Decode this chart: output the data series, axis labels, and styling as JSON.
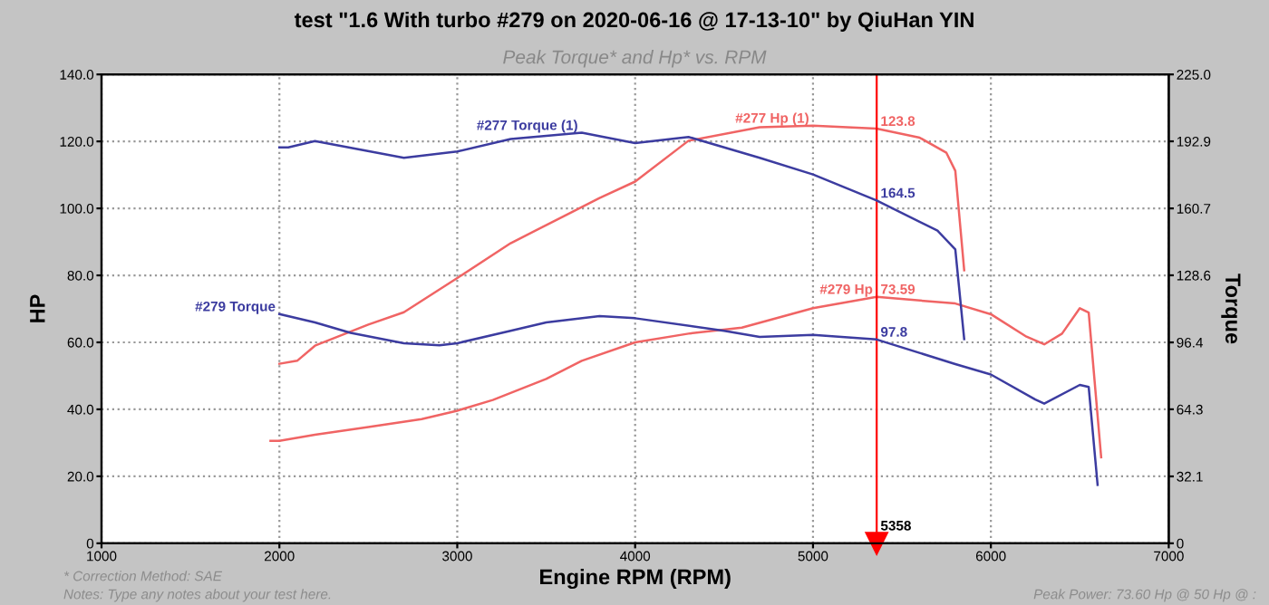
{
  "chart_data": {
    "type": "line",
    "title": "test \"1.6 With turbo #279 on 2020-06-16 @ 17-13-10\" by QiuHan YIN",
    "subtitle": "Peak Torque* and Hp* vs. RPM",
    "xlabel": "Engine RPM (RPM)",
    "ylabel": "HP",
    "y2label": "Torque",
    "xlim": [
      1000,
      7000
    ],
    "xticks": [
      1000,
      2000,
      3000,
      4000,
      5000,
      6000,
      7000
    ],
    "ylim": [
      0,
      140
    ],
    "yticks": [
      0,
      {
        "value": 20,
        "label": "20.0"
      },
      {
        "value": 40,
        "label": "40.0"
      },
      {
        "value": 60,
        "label": "60.0"
      },
      {
        "value": 80,
        "label": "80.0"
      },
      {
        "value": 100,
        "label": "100.0"
      },
      {
        "value": 120,
        "label": "120.0"
      },
      {
        "value": 140,
        "label": "140.0"
      }
    ],
    "y2lim": [
      0,
      225
    ],
    "y2ticks": [
      0,
      32.1,
      64.3,
      96.4,
      128.6,
      160.7,
      192.9,
      {
        "value": 225,
        "label": "225.0"
      }
    ],
    "grid": true,
    "legend": false,
    "series": [
      {
        "name": "#277 Torque (1)",
        "color": "#3c3ca0",
        "axis": "y2",
        "x": [
          2000,
          2050,
          2200,
          2450,
          2700,
          3000,
          3300,
          3700,
          4000,
          4300,
          4700,
          5000,
          5358,
          5700,
          5800,
          5850
        ],
        "values": [
          190,
          190,
          193,
          189,
          185,
          188,
          194,
          197,
          192,
          195,
          185,
          177,
          164.5,
          150,
          141,
          98
        ],
        "value_labels": [
          null,
          null,
          null,
          null,
          null,
          null,
          null,
          null,
          null,
          null,
          null,
          null,
          "164.5",
          null,
          null,
          null
        ]
      },
      {
        "name": "#277 Hp (1)",
        "color": "#f06464",
        "x": [
          2000,
          2100,
          2200,
          2500,
          2700,
          3000,
          3300,
          3600,
          3800,
          4000,
          4300,
          4700,
          5000,
          5358,
          5600,
          5750,
          5800,
          5850
        ],
        "values": [
          53.6,
          54.5,
          59,
          65.3,
          69,
          79.2,
          89.6,
          97.7,
          103.1,
          108,
          120.2,
          124.2,
          124.7,
          123.8,
          121.1,
          116.6,
          111.2,
          81.5
        ],
        "value_labels": [
          null,
          null,
          null,
          null,
          null,
          null,
          null,
          null,
          null,
          null,
          null,
          null,
          null,
          "123.8",
          null,
          null,
          null,
          null
        ]
      },
      {
        "name": "#279 Torque",
        "color": "#3c3ca0",
        "axis": "y2",
        "x": [
          2000,
          2200,
          2400,
          2700,
          2900,
          3000,
          3300,
          3500,
          3800,
          4000,
          4500,
          4700,
          5000,
          5358,
          5800,
          6000,
          6250,
          6300,
          6500,
          6550,
          6600
        ],
        "values": [
          110,
          106,
          101,
          96,
          95,
          96,
          102,
          106,
          109,
          108,
          102,
          99,
          100,
          97.8,
          86,
          81,
          69,
          67,
          76,
          75,
          28
        ],
        "value_labels": [
          null,
          null,
          null,
          null,
          null,
          null,
          null,
          null,
          null,
          null,
          null,
          null,
          null,
          "97.8",
          null,
          null,
          null,
          null,
          null,
          null,
          null
        ]
      },
      {
        "name": "#279 Hp",
        "color": "#f06464",
        "x": [
          1950,
          2000,
          2200,
          2500,
          2800,
          3000,
          3200,
          3500,
          3700,
          4000,
          4300,
          4600,
          5000,
          5358,
          5800,
          6000,
          6200,
          6300,
          6400,
          6500,
          6550,
          6620
        ],
        "values": [
          30.6,
          30.6,
          32.4,
          34.7,
          37.1,
          39.6,
          42.8,
          49.1,
          54.5,
          60,
          62.6,
          64.4,
          70.2,
          73.59,
          71.6,
          68.4,
          61.7,
          59.4,
          62.6,
          70.2,
          68.9,
          25.7
        ],
        "value_labels": [
          null,
          null,
          null,
          null,
          null,
          null,
          null,
          null,
          null,
          null,
          null,
          null,
          null,
          "73.59",
          null,
          null,
          null,
          null,
          null,
          null,
          null,
          null
        ]
      }
    ],
    "ref_lines": [
      {
        "axis": "x",
        "value": 5358,
        "label": "5358",
        "color": "#ff0000"
      }
    ],
    "annotations": [
      "* Correction Method: SAE",
      "Notes: Type any notes about your test here.",
      "Peak Power: 73.60 Hp @ 50 Hp @ :"
    ]
  }
}
